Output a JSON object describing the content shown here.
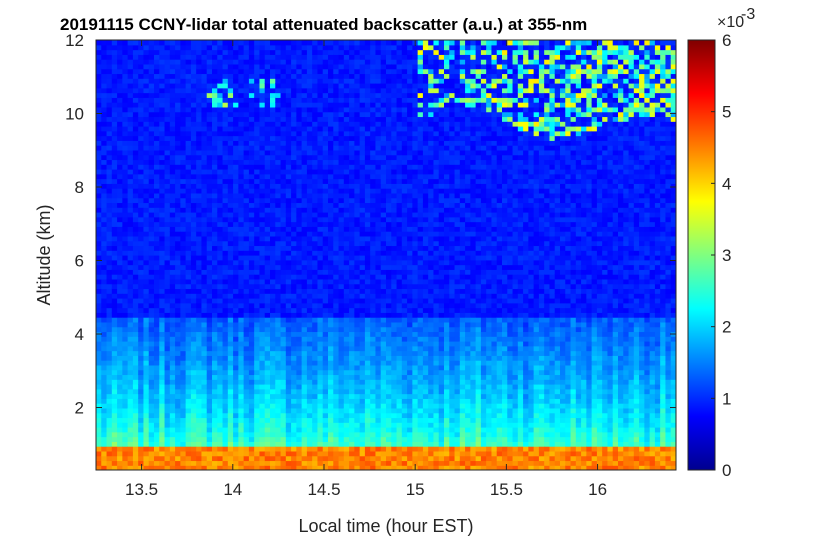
{
  "chart_data": {
    "type": "heatmap",
    "title": "20191115 CCNY-lidar total attenuated backscatter (a.u.) at 355-nm",
    "xlabel": "Local time (hour EST)",
    "ylabel": "Altitude (km)",
    "xlim": [
      13.25,
      16.43
    ],
    "ylim": [
      0.3,
      12
    ],
    "xticks": [
      "13.5",
      "14",
      "14.5",
      "15",
      "15.5",
      "16"
    ],
    "xtick_values": [
      13.5,
      14,
      14.5,
      15,
      15.5,
      16
    ],
    "yticks": [
      "2",
      "4",
      "6",
      "8",
      "10",
      "12"
    ],
    "ytick_values": [
      2,
      4,
      6,
      8,
      10,
      12
    ],
    "colorbar": {
      "label": "total attenuated backscatter (a.u.)",
      "ticks": [
        "0",
        "1",
        "2",
        "3",
        "4",
        "5",
        "6"
      ],
      "tick_values": [
        0,
        1,
        2,
        3,
        4,
        5,
        6
      ],
      "scale_multiplier": "×10",
      "scale_exponent": "-3",
      "colormap": "jet",
      "range": [
        0,
        6
      ]
    },
    "features": [
      {
        "type": "surface layer",
        "altitude_km": [
          0.3,
          0.9
        ],
        "value_e3": 4.5
      },
      {
        "type": "boundary layer gradient",
        "altitude_km": [
          0.9,
          4.5
        ],
        "value_e3": [
          2.8,
          1.3
        ]
      },
      {
        "type": "free troposphere",
        "altitude_km": [
          4.5,
          12
        ],
        "value_e3": 0.9
      },
      {
        "type": "cirrus patch",
        "time_hr": [
          13.85,
          14.25
        ],
        "altitude_km": [
          10.2,
          11.0
        ],
        "value_e3": 2.8
      },
      {
        "type": "cirrus cloud",
        "time_hr": [
          15.0,
          16.43
        ],
        "altitude_km": [
          9.7,
          12.0
        ],
        "value_e3": 3.5
      }
    ]
  }
}
